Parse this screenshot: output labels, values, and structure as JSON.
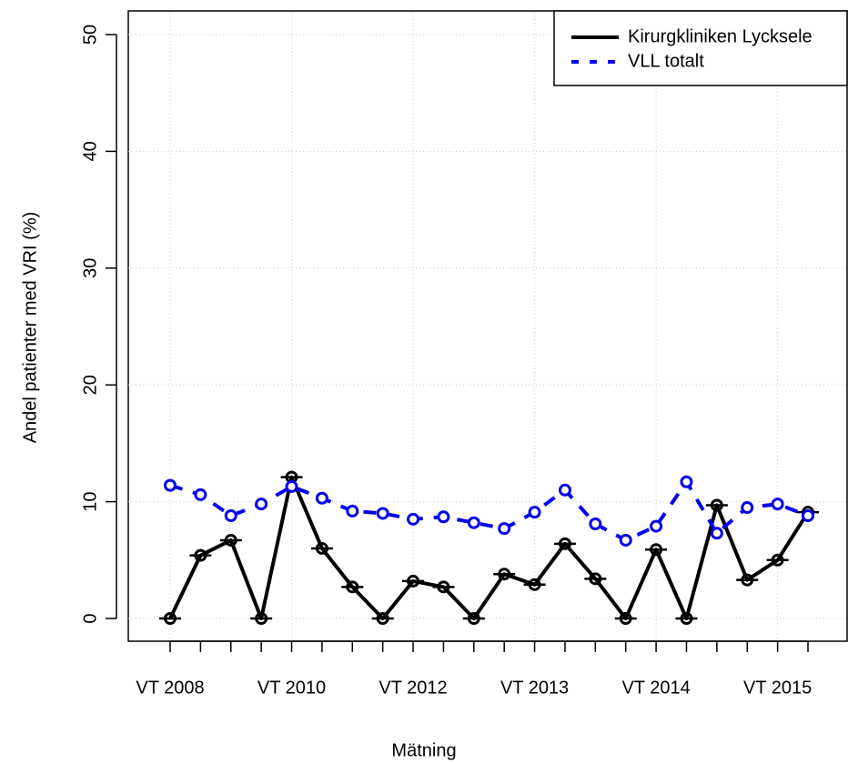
{
  "chart_data": {
    "type": "line",
    "x_label": "Mätning",
    "y_label": "Andel patienter med VRI (%)",
    "categories": [
      "VT 2008",
      null,
      null,
      null,
      "VT 2010",
      null,
      null,
      null,
      "VT 2012",
      null,
      null,
      null,
      "VT 2013",
      null,
      null,
      null,
      "VT 2014",
      null,
      null,
      null,
      "VT 2015",
      null
    ],
    "series": [
      {
        "name": "Kirurgkliniken Lycksele",
        "color": "#000000",
        "values": [
          0,
          5.4,
          6.7,
          0,
          12.1,
          6.0,
          2.7,
          0,
          3.2,
          2.7,
          0,
          3.8,
          2.9,
          6.4,
          3.4,
          0,
          5.9,
          0,
          9.7,
          3.3,
          5.0,
          9.1
        ]
      },
      {
        "name": "VLL totalt",
        "color": "#0000ee",
        "values": [
          11.4,
          10.6,
          8.8,
          9.8,
          11.3,
          10.3,
          9.2,
          9.0,
          8.5,
          8.7,
          8.2,
          7.7,
          9.1,
          11.0,
          8.1,
          6.7,
          7.9,
          11.7,
          7.3,
          9.5,
          9.8,
          8.8
        ]
      }
    ],
    "ylim": [
      0,
      50
    ],
    "yticks": [
      0,
      10,
      20,
      30,
      40,
      50
    ],
    "grid": true,
    "legend": "topright"
  }
}
